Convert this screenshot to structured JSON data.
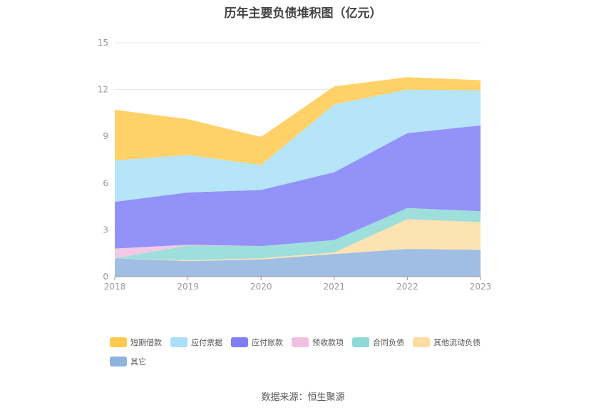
{
  "chart_data": {
    "type": "area",
    "stacked": true,
    "title": "历年主要负债堆积图（亿元）",
    "x": [
      "2018",
      "2019",
      "2020",
      "2021",
      "2022",
      "2023"
    ],
    "ylim": [
      0,
      15
    ],
    "yticks": [
      0,
      3,
      6,
      9,
      12,
      15
    ],
    "grid": true,
    "legend_position": "bottom",
    "series": [
      {
        "name": "其它",
        "color": "#8fb3df",
        "values": [
          1.18,
          1.0,
          1.1,
          1.45,
          1.78,
          1.72
        ]
      },
      {
        "name": "其他流动负债",
        "color": "#fddda4",
        "values": [
          0.0,
          0.05,
          0.08,
          0.1,
          1.9,
          1.78
        ]
      },
      {
        "name": "合同负债",
        "color": "#8dd9d6",
        "values": [
          0.0,
          0.95,
          0.78,
          0.8,
          0.72,
          0.7
        ]
      },
      {
        "name": "预收款项",
        "color": "#f0c0e0",
        "values": [
          0.62,
          0.05,
          0.0,
          0.0,
          0.0,
          0.0
        ]
      },
      {
        "name": "应付账款",
        "color": "#7f7ff7",
        "values": [
          3.0,
          3.35,
          3.6,
          4.35,
          4.8,
          5.5
        ]
      },
      {
        "name": "应付票据",
        "color": "#a9dff7",
        "values": [
          2.65,
          2.4,
          1.6,
          4.35,
          2.8,
          2.25
        ]
      },
      {
        "name": "短期借款",
        "color": "#fec94f",
        "values": [
          3.25,
          2.3,
          1.8,
          1.15,
          0.8,
          0.65
        ]
      }
    ],
    "legend_order": [
      "短期借款",
      "应付票据",
      "应付账款",
      "预收款项",
      "合同负债",
      "其他流动负债",
      "其它"
    ]
  },
  "source": "数据来源：恒生聚源"
}
